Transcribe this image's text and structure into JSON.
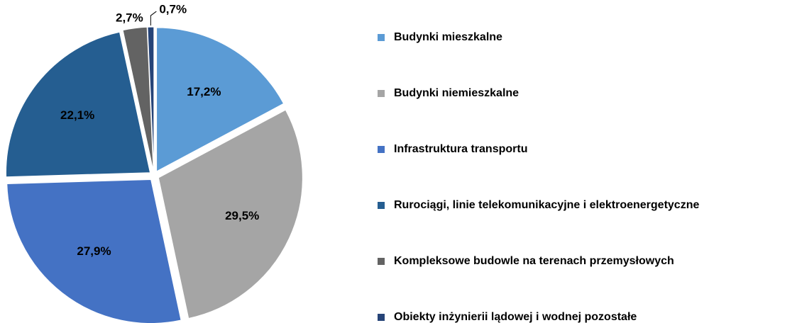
{
  "chart_data": {
    "type": "pie",
    "categories": [
      "Budynki mieszkalne",
      "Budynki niemieszkalne",
      "Infrastruktura transportu",
      "Rurociągi, linie telekomunikacyjne i elektroenergetyczne",
      "Kompleksowe budowle na terenach przemysłowych",
      "Obiekty inżynierii lądowej i wodnej pozostałe"
    ],
    "values": [
      17.2,
      29.5,
      27.9,
      22.1,
      2.7,
      0.7
    ],
    "value_labels": [
      "17,2%",
      "29,5%",
      "27,9%",
      "22,1%",
      "2,7%",
      "0,7%"
    ],
    "colors": [
      "#5b9bd5",
      "#a5a5a5",
      "#4472c4",
      "#255e91",
      "#636363",
      "#264478"
    ]
  }
}
